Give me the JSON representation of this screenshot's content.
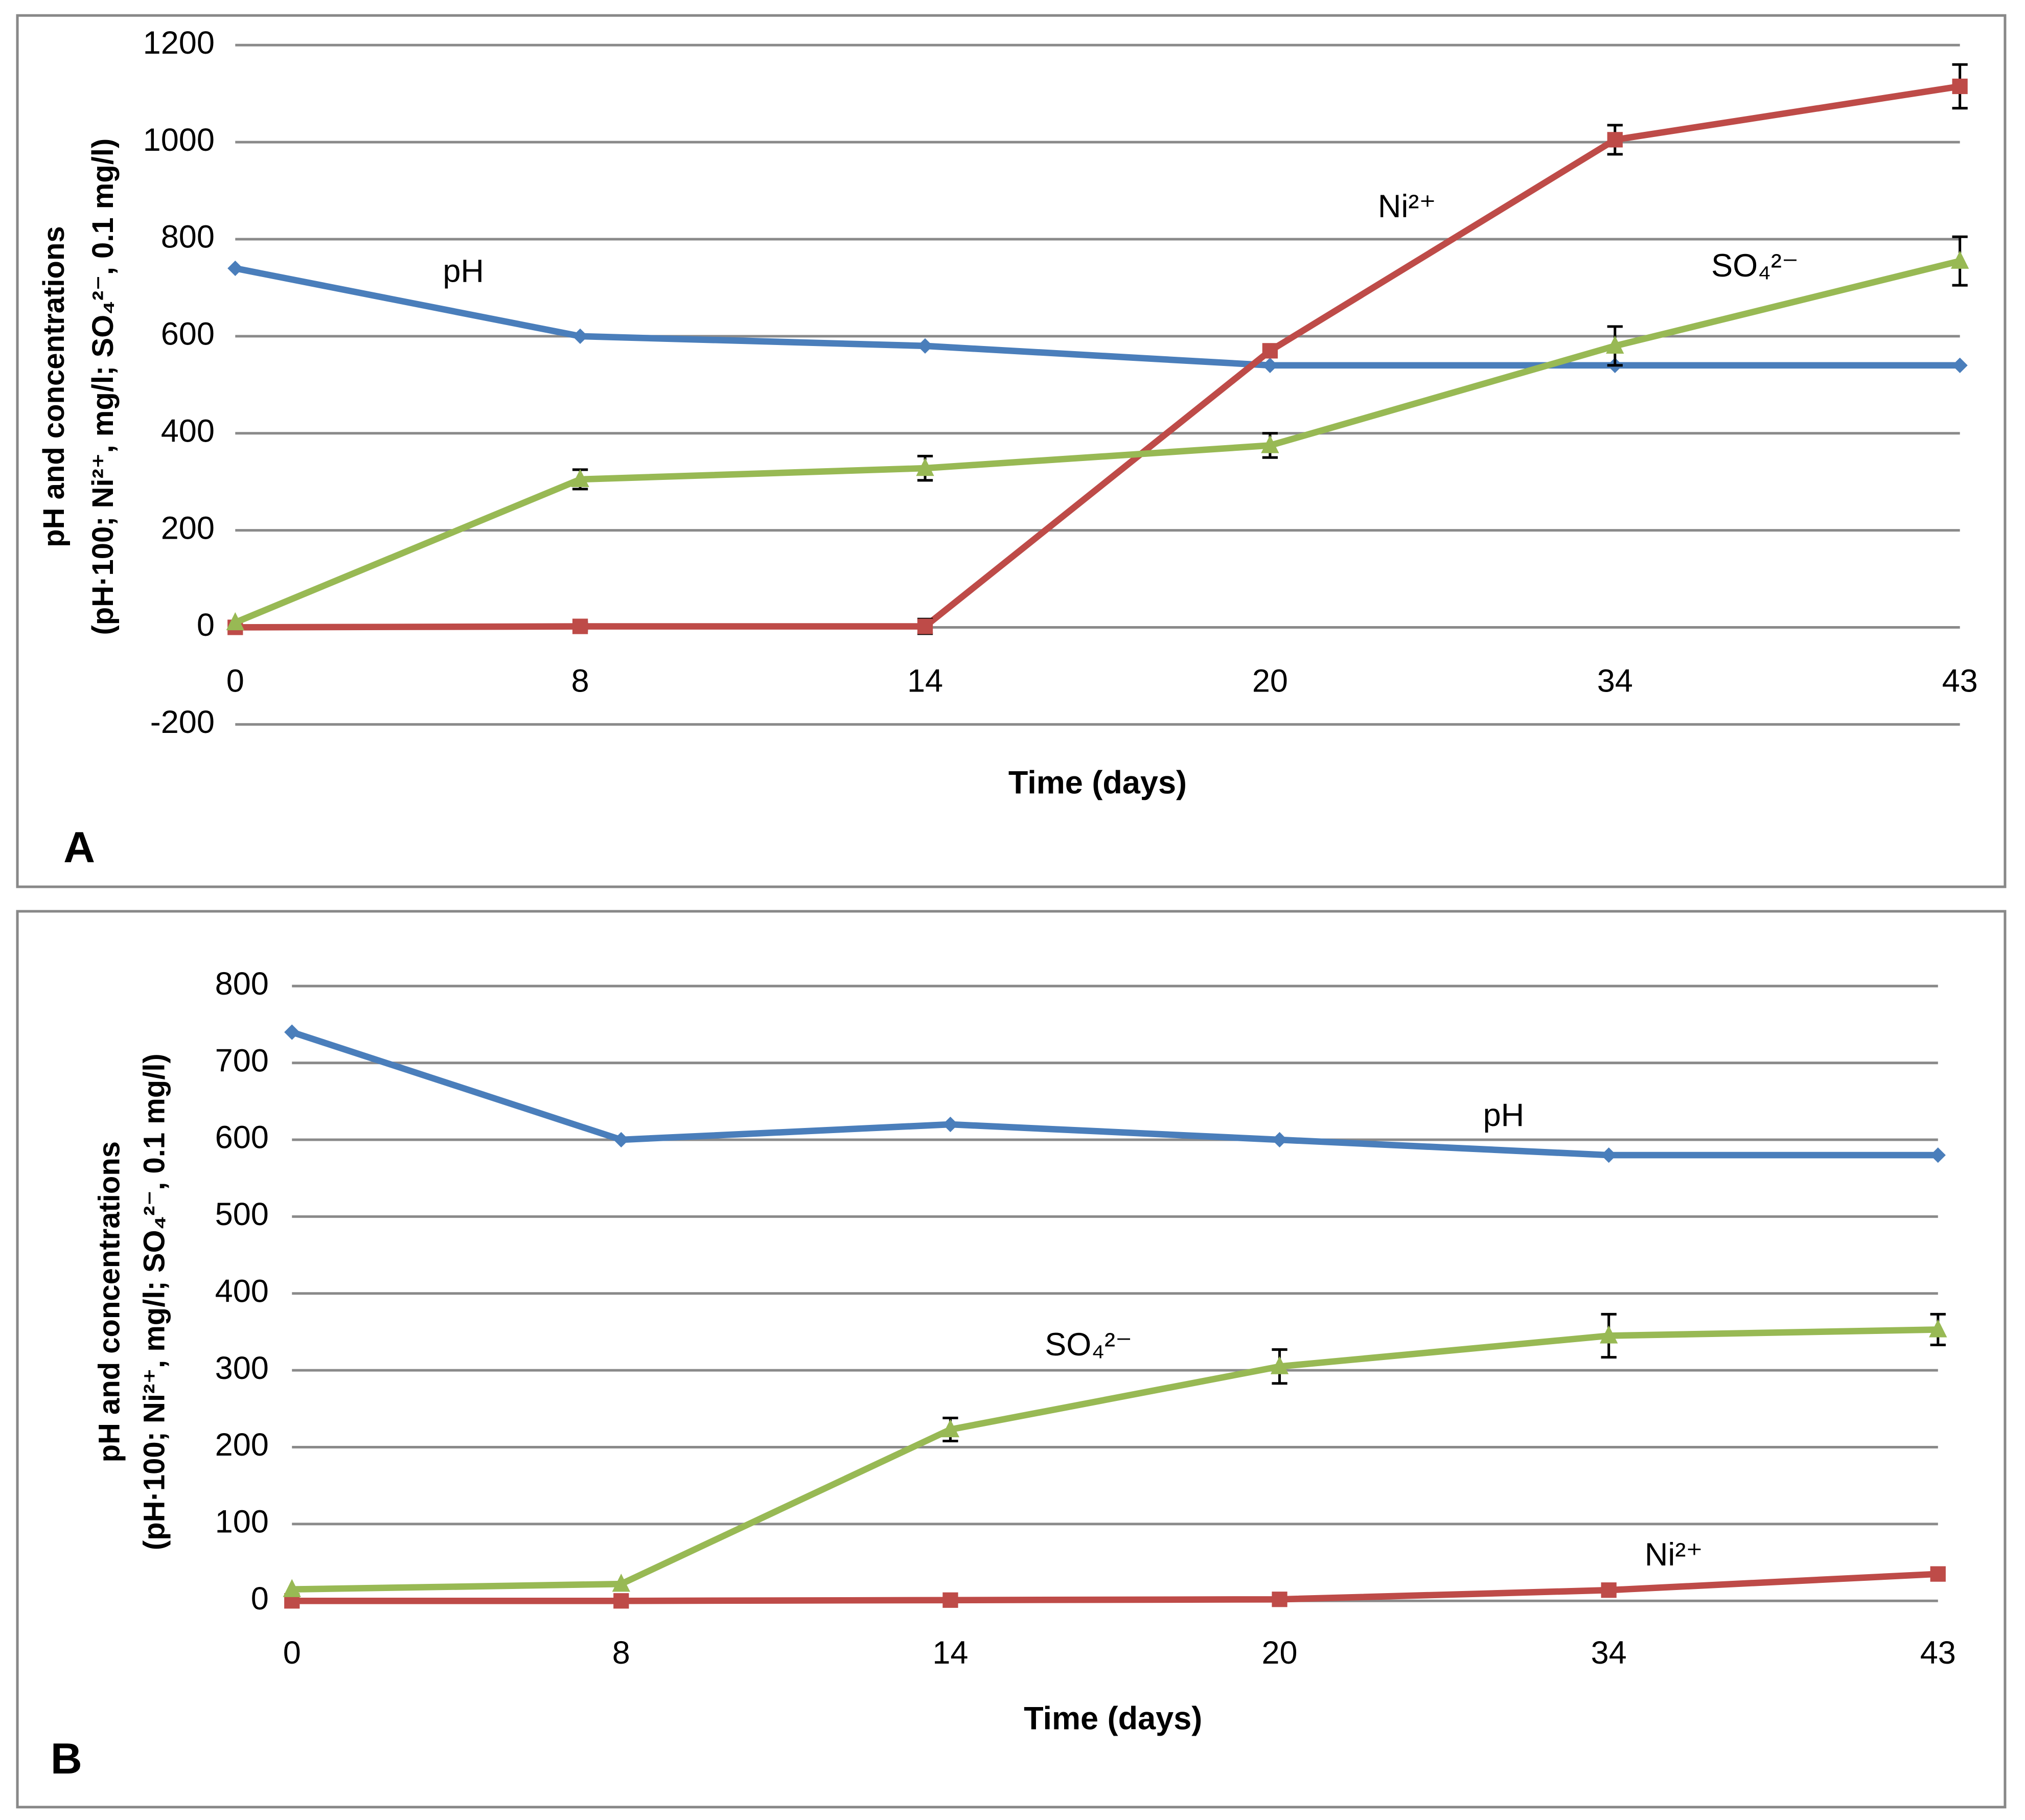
{
  "chart_data": [
    {
      "type": "line",
      "panel_label": "A",
      "xlabel": "Time (days)",
      "ylabel": [
        "pH and concentrations",
        "(pH·100; Ni²⁺, mg/l; SO₄²⁻, 0.1 mg/l)"
      ],
      "categories": [
        "0",
        "8",
        "14",
        "20",
        "34",
        "43"
      ],
      "ylim": [
        -200,
        1200
      ],
      "yticks": [
        -200,
        0,
        200,
        400,
        600,
        800,
        1000,
        1200
      ],
      "grid": true,
      "series": [
        {
          "name": "pH",
          "color": "#4a7ebb",
          "marker": "diamond",
          "values": [
            740,
            600,
            580,
            540,
            540,
            540
          ]
        },
        {
          "name": "Ni²⁺",
          "color": "#be4b48",
          "marker": "square",
          "values": [
            0,
            2,
            2,
            570,
            1005,
            1115
          ],
          "errors": [
            null,
            8,
            15,
            null,
            30,
            45
          ]
        },
        {
          "name": "SO₄²⁻",
          "color": "#98b954",
          "marker": "triangle",
          "values": [
            10,
            305,
            328,
            375,
            580,
            755
          ],
          "errors": [
            null,
            20,
            25,
            25,
            40,
            50
          ]
        }
      ]
    },
    {
      "type": "line",
      "panel_label": "B",
      "xlabel": "Time (days)",
      "ylabel": [
        "pH and concentrations",
        "(pH·100; Ni²⁺, mg/l; SO₄²⁻, 0.1 mg/l)"
      ],
      "categories": [
        "0",
        "8",
        "14",
        "20",
        "34",
        "43"
      ],
      "ylim": [
        0,
        800
      ],
      "yticks": [
        0,
        100,
        200,
        300,
        400,
        500,
        600,
        700,
        800
      ],
      "grid": true,
      "series": [
        {
          "name": "pH",
          "color": "#4a7ebb",
          "marker": "diamond",
          "values": [
            740,
            600,
            620,
            600,
            580,
            580
          ]
        },
        {
          "name": "Ni²⁺",
          "color": "#be4b48",
          "marker": "square",
          "values": [
            0,
            0,
            1,
            2,
            14,
            35
          ]
        },
        {
          "name": "SO₄²⁻",
          "color": "#98b954",
          "marker": "triangle",
          "values": [
            15,
            22,
            223,
            305,
            345,
            353
          ],
          "errors": [
            null,
            null,
            15,
            22,
            28,
            20
          ]
        }
      ]
    }
  ]
}
